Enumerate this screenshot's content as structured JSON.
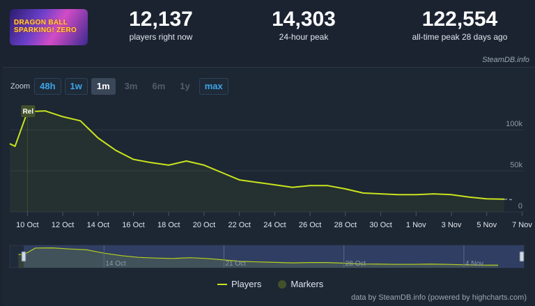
{
  "header": {
    "game_logo_text": "DRAGON BALL SPARKING! ZERO",
    "stats": [
      {
        "value": "12,137",
        "label": "players right now"
      },
      {
        "value": "14,303",
        "label": "24-hour peak"
      },
      {
        "value": "122,554",
        "label": "all-time peak 28 days ago"
      }
    ]
  },
  "credit_top": "SteamDB.info",
  "zoom": {
    "label": "Zoom",
    "buttons": [
      {
        "label": "48h",
        "state": "enabled"
      },
      {
        "label": "1w",
        "state": "enabled"
      },
      {
        "label": "1m",
        "state": "active"
      },
      {
        "label": "3m",
        "state": "disabled"
      },
      {
        "label": "6m",
        "state": "disabled"
      },
      {
        "label": "1y",
        "state": "disabled"
      },
      {
        "label": "max",
        "state": "enabled"
      }
    ]
  },
  "chart_data": {
    "type": "line",
    "x_unit": "date (Oct–Nov)",
    "series": [
      {
        "name": "Players",
        "color": "#c9e41d",
        "x": [
          "Oct 9",
          "Oct 9.3",
          "Oct 10",
          "Oct 11",
          "Oct 12",
          "Oct 13",
          "Oct 14",
          "Oct 15",
          "Oct 16",
          "Oct 17",
          "Oct 18",
          "Oct 19",
          "Oct 20",
          "Oct 21",
          "Oct 22",
          "Oct 23",
          "Oct 24",
          "Oct 25",
          "Oct 26",
          "Oct 27",
          "Oct 28",
          "Oct 29",
          "Oct 30",
          "Oct 31",
          "Nov 1",
          "Nov 2",
          "Nov 3",
          "Nov 4",
          "Nov 5",
          "Nov 6"
        ],
        "values": [
          83000,
          80000,
          122000,
          123000,
          116000,
          111000,
          90000,
          75000,
          64000,
          60000,
          57000,
          62000,
          57000,
          48000,
          39000,
          36000,
          33000,
          30000,
          32000,
          32000,
          28000,
          23000,
          22000,
          21000,
          21000,
          22000,
          21000,
          18000,
          16000,
          15500
        ]
      }
    ],
    "markers": [
      {
        "x": "Oct 10",
        "label": "Rel"
      }
    ],
    "x_ticks": [
      "10 Oct",
      "12 Oct",
      "14 Oct",
      "16 Oct",
      "18 Oct",
      "20 Oct",
      "22 Oct",
      "24 Oct",
      "26 Oct",
      "28 Oct",
      "30 Oct",
      "1 Nov",
      "3 Nov",
      "5 Nov",
      "7 Nov"
    ],
    "y_ticks": [
      "0",
      "50k",
      "100k"
    ],
    "ylim": [
      0,
      135000
    ],
    "navigator_ticks": [
      "14 Oct",
      "21 Oct",
      "28 Oct",
      "4 Nov"
    ],
    "legend": [
      {
        "label": "Players",
        "color": "#c9e41d"
      },
      {
        "label": "Markers",
        "color": "#42512b"
      }
    ],
    "legend_position": "bottom-center"
  },
  "credit_bottom": "data by SteamDB.info (powered by highcharts.com)"
}
